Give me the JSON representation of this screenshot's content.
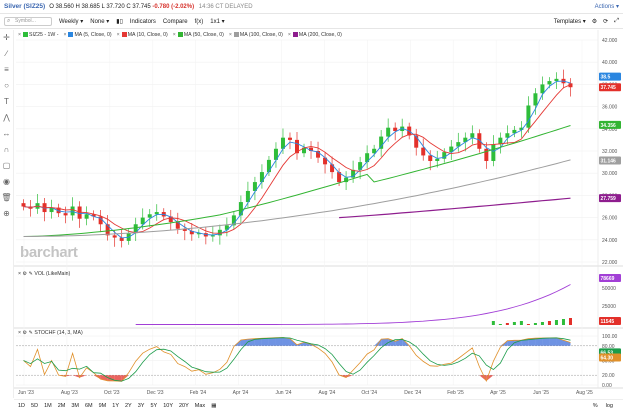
{
  "header": {
    "title": "Silver (SIZ25)",
    "quote_prefix": "O 38.560 H 38.685 L 37.720 C 37.745",
    "change": "-0.780 (-2.02%)",
    "timestamp": "14:36 CT DELAYED",
    "actions_label": "Actions"
  },
  "toolbar": {
    "search_placeholder": "Symbol...",
    "weekly": "Weekly",
    "none": "None",
    "indicators": "Indicators",
    "compare": "Compare",
    "fx": "f(x)",
    "layout": "1x1",
    "templates": "Templates"
  },
  "legend": {
    "symbol": "SIZ25 - 1W -",
    "ma5": "MA (5, Close, 0)",
    "ma10": "MA (10, Close, 0)",
    "ma50": "MA (50, Close, 0)",
    "ma100": "MA (100, Close, 0)",
    "ma200": "MA (200, Close, 0)"
  },
  "colors": {
    "up": "#2ebd3a",
    "down": "#e3302a",
    "ma5": "#2a86e0",
    "ma10": "#e53935",
    "ma50": "#32b432",
    "ma100": "#9e9e9e",
    "ma200": "#8e1d8e",
    "volume": "#a23fd6",
    "stoch_k": "#e0902a",
    "stoch_d": "#1c9c4a"
  },
  "price_axis": [
    "42.000",
    "40.000",
    "38.000",
    "36.000",
    "34.000",
    "32.000",
    "30.000",
    "28.000",
    "26.000",
    "24.000",
    "22.000"
  ],
  "price_tags": {
    "last": "37.745",
    "ma50": "34.356",
    "ma100": "31.146",
    "ma200": "27.759",
    "ma5_top": "38.5"
  },
  "volume": {
    "label": "VOL (LikeMain)",
    "axis": [
      "50000",
      "25000"
    ],
    "tag_top": "78669",
    "tag_bottom": "11545"
  },
  "stoch": {
    "label": "STOCHF (14, 3, MA)",
    "axis": [
      "100.00",
      "80.00",
      "50.00",
      "20.00",
      "0.00"
    ],
    "tag_a": "64.30",
    "tag_b": "66.53"
  },
  "x_axis": [
    "Jun '23",
    "Aug '23",
    "Oct '23",
    "Dec '23",
    "Feb '24",
    "Apr '24",
    "Jun '24",
    "Aug '24",
    "Oct '24",
    "Dec '24",
    "Feb '25",
    "Apr '25",
    "Jun '25",
    "Aug '25"
  ],
  "watermark": "barchart",
  "range_buttons": [
    "1D",
    "5D",
    "1M",
    "2M",
    "3M",
    "6M",
    "9M",
    "1Y",
    "2Y",
    "3Y",
    "5Y",
    "10Y",
    "20Y",
    "Max"
  ],
  "bottom_right": [
    "%",
    "log"
  ],
  "chart_data": {
    "type": "line",
    "title": "Silver (SIZ25)",
    "close_approx": [
      27.0,
      26.8,
      27.3,
      26.5,
      26.9,
      26.4,
      26.2,
      27.0,
      25.9,
      26.3,
      26.1,
      25.4,
      24.4,
      24.2,
      23.9,
      24.6,
      25.4,
      26.0,
      26.3,
      26.5,
      26.1,
      25.6,
      25.0,
      24.8,
      24.5,
      24.6,
      24.3,
      24.4,
      24.9,
      25.3,
      26.2,
      27.4,
      28.4,
      29.2,
      30.1,
      31.2,
      32.2,
      33.2,
      33.0,
      31.8,
      32.3,
      32.0,
      31.4,
      30.8,
      30.1,
      29.2,
      29.6,
      30.3,
      31.0,
      31.8,
      32.2,
      33.3,
      34.1,
      33.8,
      34.2,
      33.4,
      32.3,
      31.6,
      31.1,
      31.3,
      31.9,
      32.4,
      32.8,
      33.2,
      33.6,
      32.2,
      31.1,
      32.6,
      33.2,
      33.6,
      33.9,
      34.1,
      36.1,
      37.2,
      38.0,
      38.3,
      38.5,
      38.1,
      37.745
    ],
    "ylim": [
      22,
      42
    ]
  }
}
